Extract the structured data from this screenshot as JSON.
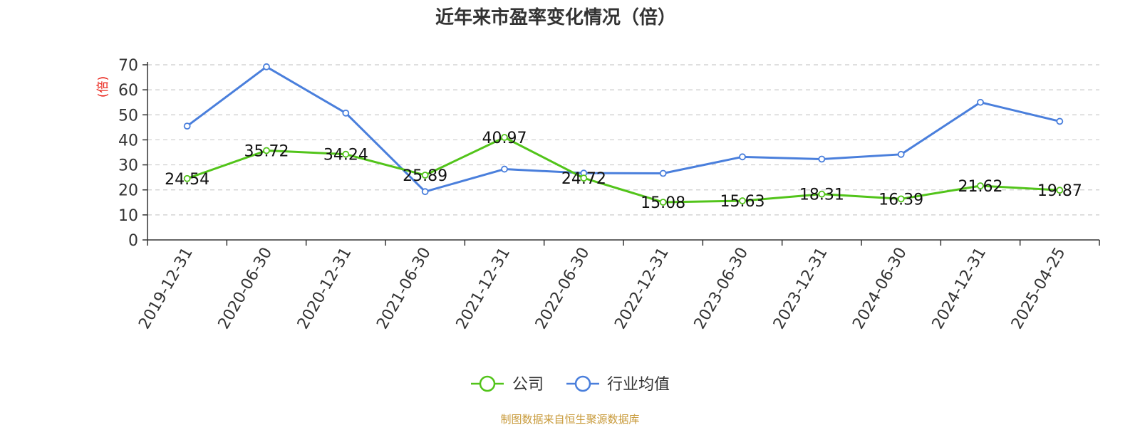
{
  "chart_data": {
    "type": "line",
    "title": "近年来市盈率变化情况（倍）",
    "ylabel": "(倍)",
    "ylim": [
      0,
      70
    ],
    "yticks": [
      0,
      10,
      20,
      30,
      40,
      50,
      60,
      70
    ],
    "grid": true,
    "legend_position": "bottom",
    "categories": [
      "2019-12-31",
      "2020-06-30",
      "2020-12-31",
      "2021-06-30",
      "2021-12-31",
      "2022-06-30",
      "2022-12-31",
      "2023-06-30",
      "2023-12-31",
      "2024-06-30",
      "2024-12-31",
      "2025-04-25"
    ],
    "series": [
      {
        "name": "公司",
        "color": "#52c41a",
        "values": [
          24.54,
          35.72,
          34.24,
          25.89,
          40.97,
          24.72,
          15.08,
          15.63,
          18.31,
          16.39,
          21.62,
          19.87
        ],
        "labels": [
          "24.54",
          "35.72",
          "34.24",
          "25.89",
          "40.97",
          "24.72",
          "15.08",
          "15.63",
          "18.31",
          "16.39",
          "21.62",
          "19.87"
        ]
      },
      {
        "name": "行业均值",
        "color": "#4a7fdc",
        "values": [
          45.5,
          69.2,
          50.7,
          19.3,
          28.3,
          26.7,
          26.6,
          33.2,
          32.3,
          34.2,
          55.0,
          47.4
        ]
      }
    ],
    "source": "制图数据来自恒生聚源数据库"
  },
  "colors": {
    "title": "#333333",
    "axis_name": "#e8190f",
    "grid": "#cccccc",
    "source": "#c89a3a"
  }
}
